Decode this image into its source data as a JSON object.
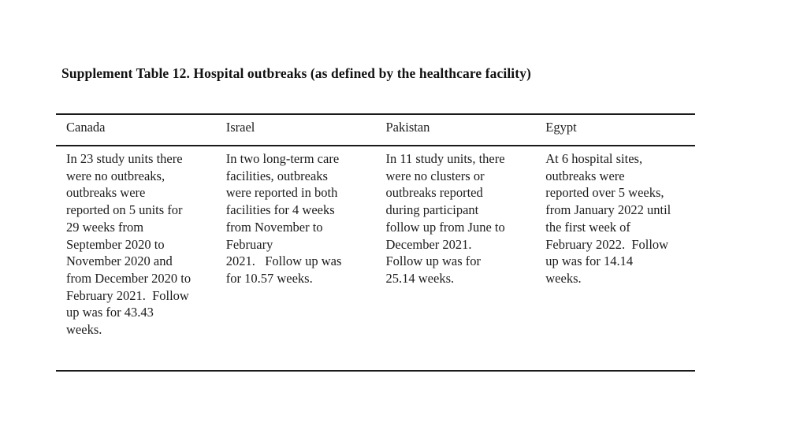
{
  "page": {
    "title": "Supplement Table 12. Hospital outbreaks (as defined by the healthcare facility)"
  },
  "table": {
    "columns": [
      {
        "header": "Canada",
        "body": "In 23 study units there\nwere no outbreaks,\noutbreaks were\nreported on 5 units for\n29 weeks from\nSeptember 2020 to\nNovember 2020 and\nfrom December 2020 to\nFebruary 2021.  Follow\nup was for 43.43\nweeks."
      },
      {
        "header": "Israel",
        "body": "In two long-term care\nfacilities, outbreaks\nwere reported in both\nfacilities for 4 weeks\nfrom November to\nFebruary\n2021.   Follow up was\nfor 10.57 weeks."
      },
      {
        "header": "Pakistan",
        "body": "In 11 study units, there\nwere no clusters or\noutbreaks reported\nduring participant\nfollow up from June to\nDecember 2021.\nFollow up was for\n25.14 weeks."
      },
      {
        "header": "Egypt",
        "body": "At 6 hospital sites,\noutbreaks were\nreported over 5 weeks,\nfrom January 2022 until\nthe first week of\nFebruary 2022.  Follow\nup was for 14.14\nweeks."
      }
    ]
  },
  "colors": {
    "text": "#1c1c1c",
    "rule": "#1a1a1a",
    "background": "#ffffff"
  }
}
